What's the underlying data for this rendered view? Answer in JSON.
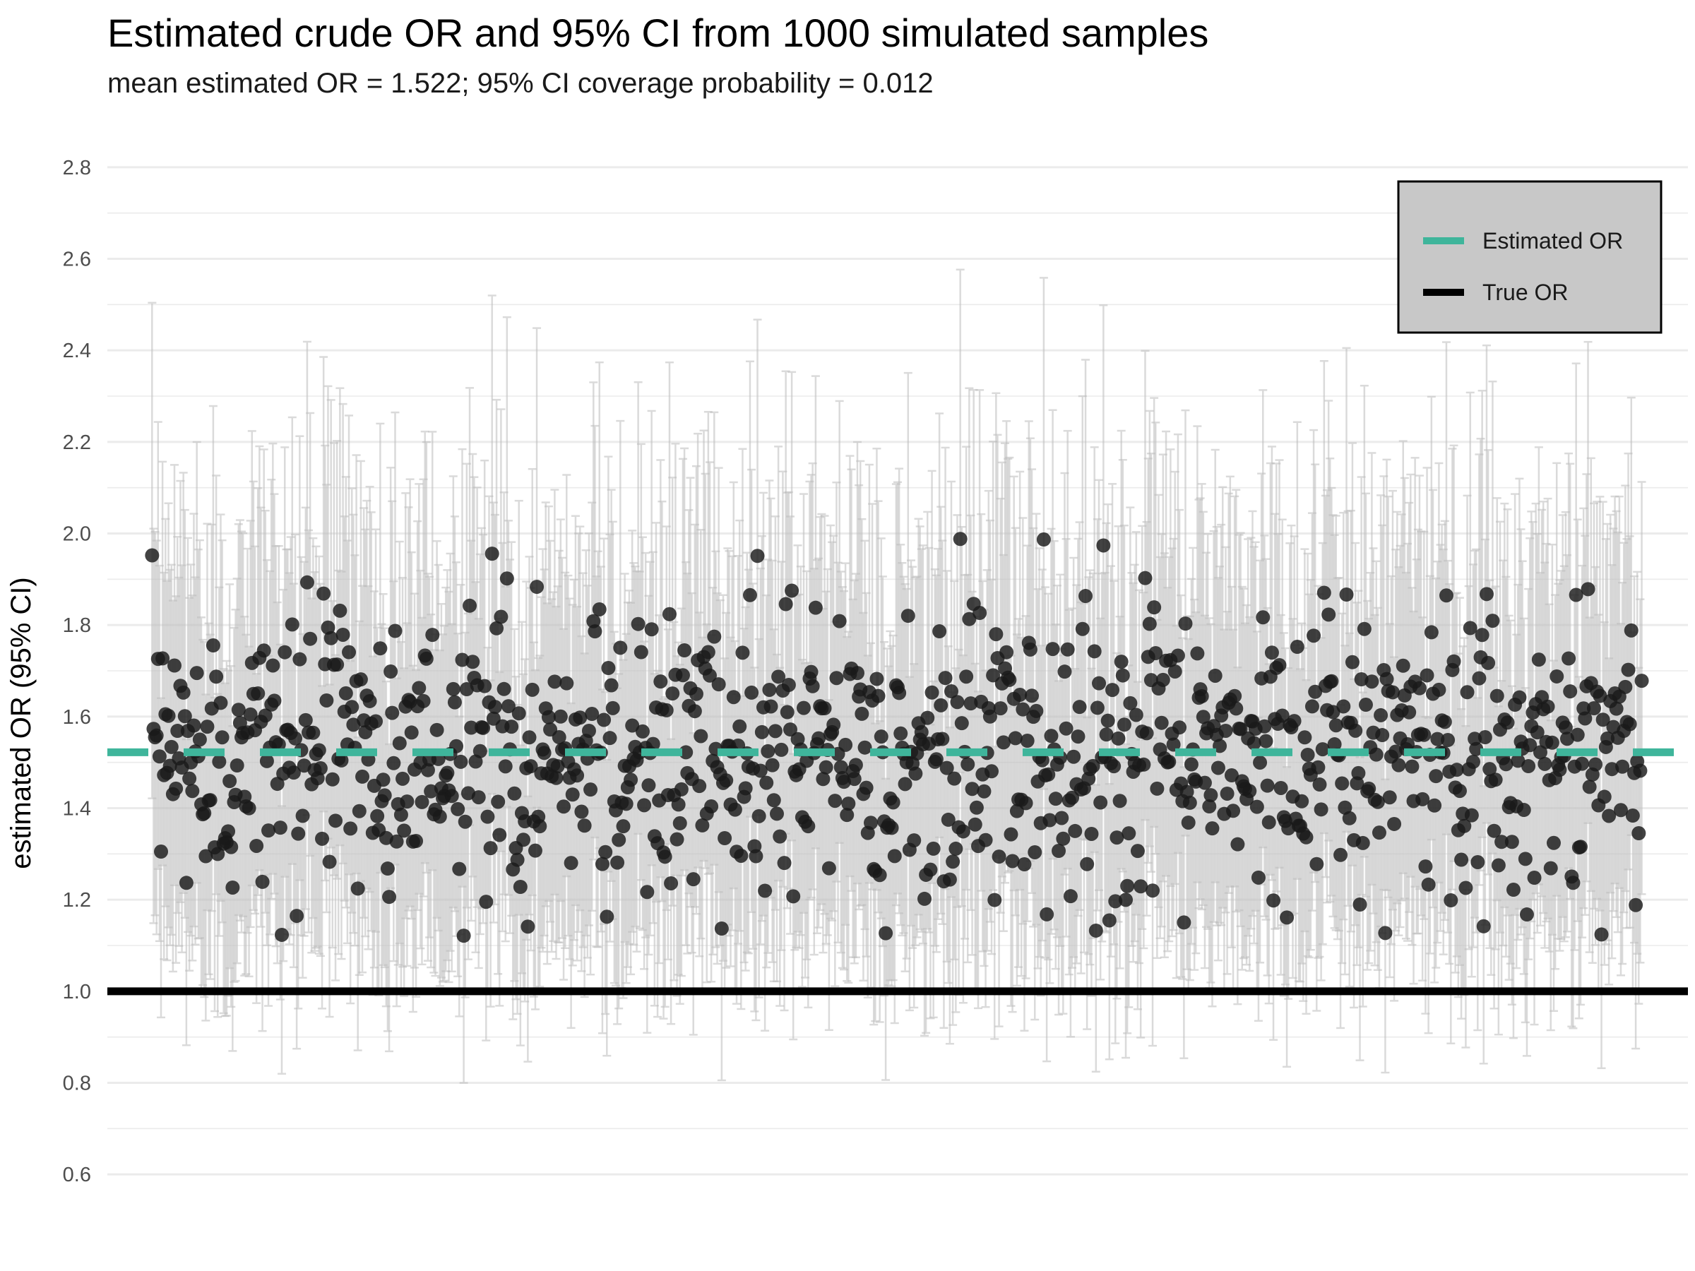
{
  "chart_data": {
    "type": "scatter",
    "title": "Estimated crude OR and 95% CI from 1000 simulated samples",
    "subtitle": "mean estimated OR = 1.522; 95% CI coverage probability = 0.012",
    "xlabel": "",
    "ylabel": "estimated OR (95% CI)",
    "ylim": [
      0.5,
      2.9
    ],
    "yticks": [
      "0.6",
      "0.8",
      "1.0",
      "1.2",
      "1.4",
      "1.6",
      "1.8",
      "2.0",
      "2.2",
      "2.4",
      "2.6",
      "2.8"
    ],
    "xlim": [
      -30,
      1030
    ],
    "grid": "horizontal",
    "legend_position": "top-right",
    "n_samples": 1000,
    "mean_estimated_or": 1.522,
    "true_or": 1.0,
    "coverage_probability": 0.012,
    "ci_relative_halfwidth": 0.27,
    "estimate_summary": {
      "min": 1.12,
      "max": 2.02,
      "mean": 1.522
    },
    "legend": [
      {
        "label": "Estimated OR",
        "color": "#3fb59b",
        "style": "dashed"
      },
      {
        "label": "True OR",
        "color": "#000000",
        "style": "solid"
      }
    ],
    "colors": {
      "points": "#1a1a1a",
      "error_bars": "#bdbdbd",
      "gridlines": "#ebebeb",
      "legend_background": "#c8c8c8"
    }
  }
}
